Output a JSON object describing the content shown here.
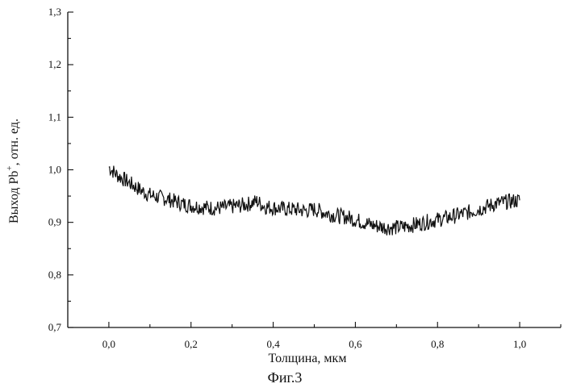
{
  "chart_data": {
    "type": "line",
    "xlabel": "Толщина, мкм",
    "ylabel_parts": {
      "main": "Выход Pb",
      "sup": "+",
      "tail": ", отн. ед."
    },
    "caption": "Фиг.3",
    "xlim": [
      -0.1,
      1.1
    ],
    "ylim": [
      0.7,
      1.3
    ],
    "x_ticks": [
      "0,0",
      "0,2",
      "0,4",
      "0,6",
      "0,8",
      "1,0"
    ],
    "x_tick_values": [
      0.0,
      0.2,
      0.4,
      0.6,
      0.8,
      1.0
    ],
    "y_ticks": [
      "0,7",
      "0,8",
      "0,9",
      "1,0",
      "1,1",
      "1,2",
      "1,3"
    ],
    "y_tick_values": [
      0.7,
      0.8,
      0.9,
      1.0,
      1.1,
      1.2,
      1.3
    ],
    "grid": false,
    "series": [
      {
        "x": [
          0.0,
          0.02,
          0.04,
          0.06,
          0.08,
          0.1,
          0.12,
          0.14,
          0.16,
          0.18,
          0.2,
          0.22,
          0.24,
          0.26,
          0.28,
          0.3,
          0.32,
          0.34,
          0.36,
          0.38,
          0.4,
          0.42,
          0.44,
          0.46,
          0.48,
          0.5,
          0.52,
          0.54,
          0.56,
          0.58,
          0.6,
          0.62,
          0.64,
          0.66,
          0.68,
          0.7,
          0.72,
          0.74,
          0.76,
          0.78,
          0.8,
          0.82,
          0.84,
          0.86,
          0.88,
          0.9,
          0.92,
          0.94,
          0.96,
          0.98,
          1.0
        ],
        "values": [
          1.005,
          0.99,
          0.98,
          0.97,
          0.96,
          0.952,
          0.948,
          0.945,
          0.94,
          0.935,
          0.932,
          0.93,
          0.928,
          0.927,
          0.928,
          0.93,
          0.932,
          0.935,
          0.94,
          0.93,
          0.928,
          0.926,
          0.925,
          0.924,
          0.922,
          0.925,
          0.92,
          0.915,
          0.912,
          0.91,
          0.905,
          0.9,
          0.895,
          0.892,
          0.89,
          0.89,
          0.892,
          0.895,
          0.898,
          0.902,
          0.905,
          0.908,
          0.912,
          0.916,
          0.92,
          0.925,
          0.93,
          0.935,
          0.938,
          0.94,
          0.942
        ]
      }
    ]
  }
}
